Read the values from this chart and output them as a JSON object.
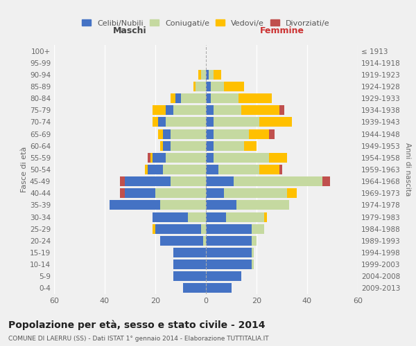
{
  "age_groups": [
    "0-4",
    "5-9",
    "10-14",
    "15-19",
    "20-24",
    "25-29",
    "30-34",
    "35-39",
    "40-44",
    "45-49",
    "50-54",
    "55-59",
    "60-64",
    "65-69",
    "70-74",
    "75-79",
    "80-84",
    "85-89",
    "90-94",
    "95-99",
    "100+"
  ],
  "birth_years": [
    "2009-2013",
    "2004-2008",
    "1999-2003",
    "1994-1998",
    "1989-1993",
    "1984-1988",
    "1979-1983",
    "1974-1978",
    "1969-1973",
    "1964-1968",
    "1959-1963",
    "1954-1958",
    "1949-1953",
    "1944-1948",
    "1939-1943",
    "1934-1938",
    "1929-1933",
    "1924-1928",
    "1919-1923",
    "1914-1918",
    "≤ 1913"
  ],
  "maschi": {
    "celibe": [
      9,
      13,
      13,
      13,
      17,
      18,
      14,
      20,
      12,
      18,
      6,
      5,
      3,
      3,
      3,
      3,
      2,
      0,
      0,
      0,
      0
    ],
    "coniugato": [
      0,
      0,
      0,
      0,
      1,
      2,
      7,
      18,
      20,
      14,
      17,
      16,
      14,
      14,
      16,
      13,
      10,
      4,
      2,
      0,
      0
    ],
    "vedovo": [
      0,
      0,
      0,
      0,
      0,
      1,
      0,
      0,
      0,
      0,
      1,
      1,
      1,
      2,
      2,
      5,
      2,
      1,
      1,
      0,
      0
    ],
    "divorziato": [
      0,
      0,
      0,
      0,
      0,
      0,
      0,
      0,
      2,
      2,
      0,
      1,
      0,
      0,
      0,
      0,
      0,
      0,
      0,
      0,
      0
    ]
  },
  "femmine": {
    "nubile": [
      10,
      14,
      18,
      18,
      18,
      18,
      8,
      12,
      7,
      11,
      5,
      3,
      3,
      3,
      3,
      3,
      2,
      2,
      1,
      0,
      0
    ],
    "coniugata": [
      0,
      0,
      1,
      1,
      2,
      5,
      15,
      21,
      25,
      35,
      16,
      22,
      12,
      14,
      18,
      11,
      11,
      5,
      2,
      0,
      0
    ],
    "vedova": [
      0,
      0,
      0,
      0,
      0,
      0,
      1,
      0,
      4,
      0,
      8,
      7,
      5,
      8,
      13,
      15,
      13,
      8,
      3,
      0,
      0
    ],
    "divorziata": [
      0,
      0,
      0,
      0,
      0,
      0,
      0,
      0,
      0,
      3,
      1,
      0,
      0,
      2,
      0,
      2,
      0,
      0,
      0,
      0,
      0
    ]
  },
  "colors": {
    "celibe": "#4472c4",
    "coniugato": "#c5d9a0",
    "vedovo": "#ffc000",
    "divorziato": "#c0504d"
  },
  "title": "Popolazione per età, sesso e stato civile - 2014",
  "subtitle": "COMUNE DI LAERRU (SS) - Dati ISTAT 1° gennaio 2014 - Elaborazione TUTTITALIA.IT",
  "ylabel_left": "Fasce di età",
  "ylabel_right": "Anni di nascita",
  "xlabel_left": "Maschi",
  "xlabel_right": "Femmine",
  "xlim": 60,
  "legend_labels": [
    "Celibi/Nubili",
    "Coniugati/e",
    "Vedovi/e",
    "Divorziati/e"
  ],
  "background_color": "#f0f0f0"
}
